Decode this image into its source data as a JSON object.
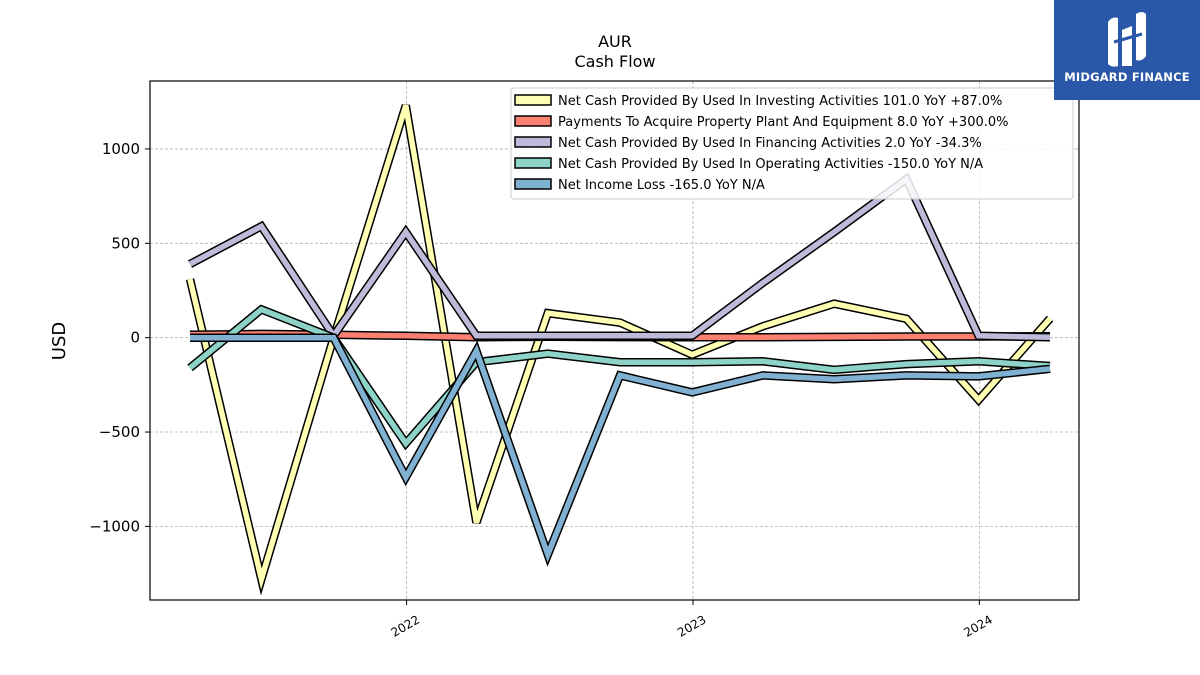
{
  "brand": {
    "name": "MIDGARD FINANCE",
    "bg": "#2a57a8"
  },
  "chart_data": {
    "type": "line",
    "title": "AUR",
    "subtitle": "Cash Flow",
    "xlabel": "",
    "ylabel": "USD",
    "ylim": [
      -1390,
      1360
    ],
    "xlim": [
      "2021-02-08",
      "2024-05-07"
    ],
    "yticks": [
      1000,
      500,
      0,
      -500,
      -1000
    ],
    "ytick_labels": [
      "1000",
      "500",
      "0",
      "−500",
      "−1000"
    ],
    "xticks": [
      "2022-01-01",
      "2023-01-01",
      "2024-01-01"
    ],
    "xtick_labels": [
      "2022",
      "2023",
      "2024"
    ],
    "grid": true,
    "legend_position": "top-right",
    "x": [
      "2021-03-31",
      "2021-06-30",
      "2021-09-30",
      "2021-12-31",
      "2022-03-31",
      "2022-06-30",
      "2022-09-30",
      "2022-12-31",
      "2023-03-31",
      "2023-06-30",
      "2023-09-30",
      "2023-12-31",
      "2024-03-31"
    ],
    "series": [
      {
        "name": "Net Cash Provided By Used In Investing Activities  101.0 YoY +87.0%",
        "color": "#ffffb3",
        "values": [
          310,
          -1280,
          0,
          1230,
          -980,
          130,
          80,
          -90,
          60,
          180,
          100,
          -330,
          101
        ]
      },
      {
        "name": "Payments To Acquire Property Plant And Equipment  8.0 YoY +300.0%",
        "color": "#fb8072",
        "values": [
          15,
          20,
          15,
          10,
          2,
          5,
          3,
          2,
          2,
          4,
          6,
          6,
          8
        ]
      },
      {
        "name": "Net Cash Provided By Used In Financing Activities  2.0 YoY -34.3%",
        "color": "#bebada",
        "values": [
          390,
          590,
          10,
          560,
          10,
          10,
          10,
          10,
          290,
          560,
          840,
          10,
          2
        ]
      },
      {
        "name": "Net Cash Provided By Used In Operating Activities  -150.0 YoY N/A",
        "color": "#8dd3c7",
        "values": [
          -160,
          150,
          0,
          -560,
          -130,
          -85,
          -130,
          -130,
          -125,
          -170,
          -140,
          -125,
          -150
        ]
      },
      {
        "name": "Net Income Loss  -165.0 YoY N/A",
        "color": "#80b1d3",
        "values": [
          0,
          0,
          0,
          -740,
          -70,
          -1150,
          -200,
          -290,
          -200,
          -220,
          -200,
          -205,
          -165
        ]
      }
    ]
  }
}
